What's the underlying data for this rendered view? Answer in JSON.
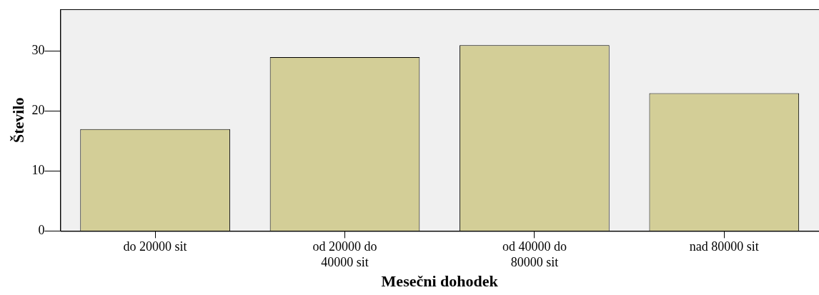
{
  "chart_data": {
    "type": "bar",
    "xlabel": "Mesečni dohodek",
    "ylabel": "Število",
    "categories": [
      "do 20000 sit",
      "od 20000 do 40000 sit",
      "od 40000 do 80000 sit",
      "nad 80000 sit"
    ],
    "values": [
      17,
      29,
      31,
      23
    ],
    "color": "#d3ce97",
    "ylim": [
      0,
      37
    ],
    "yticks": [
      0,
      10,
      20,
      30
    ],
    "grid": false,
    "legend": false
  }
}
